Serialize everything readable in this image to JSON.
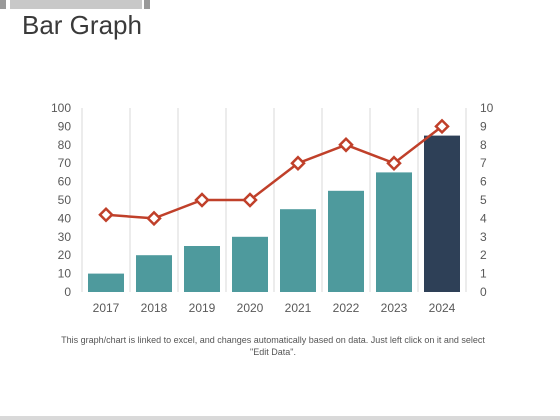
{
  "page": {
    "title": "Bar Graph",
    "footnote": "This graph/chart is linked to excel, and changes automatically based on data. Just left click on it and select \"Edit Data\"."
  },
  "colors": {
    "bar": "#4e9a9d",
    "bar_highlight": "#2e4057",
    "line": "#c0402a",
    "marker_fill": "#ffffff",
    "grid": "#d9d9d9",
    "top_bar": "#c8c8c8"
  },
  "chart_data": {
    "type": "bar",
    "categories": [
      "2017",
      "2018",
      "2019",
      "2020",
      "2021",
      "2022",
      "2023",
      "2024"
    ],
    "series": [
      {
        "type": "bar",
        "axis": "left",
        "values": [
          10,
          20,
          25,
          30,
          45,
          55,
          65,
          85
        ],
        "highlight_index": 7
      },
      {
        "type": "line",
        "axis": "right",
        "marker": "diamond",
        "values": [
          4.2,
          4,
          5,
          5,
          7,
          8,
          7,
          9
        ]
      }
    ],
    "y_ticks": [
      "0",
      "10",
      "20",
      "30",
      "40",
      "50",
      "60",
      "70",
      "80",
      "90",
      "100"
    ],
    "y2_ticks": [
      "0",
      "1",
      "2",
      "3",
      "4",
      "5",
      "6",
      "7",
      "8",
      "9",
      "10"
    ],
    "ylim": [
      0,
      100
    ],
    "y2lim": [
      0,
      10
    ],
    "grid": "vertical",
    "legend": "none"
  }
}
